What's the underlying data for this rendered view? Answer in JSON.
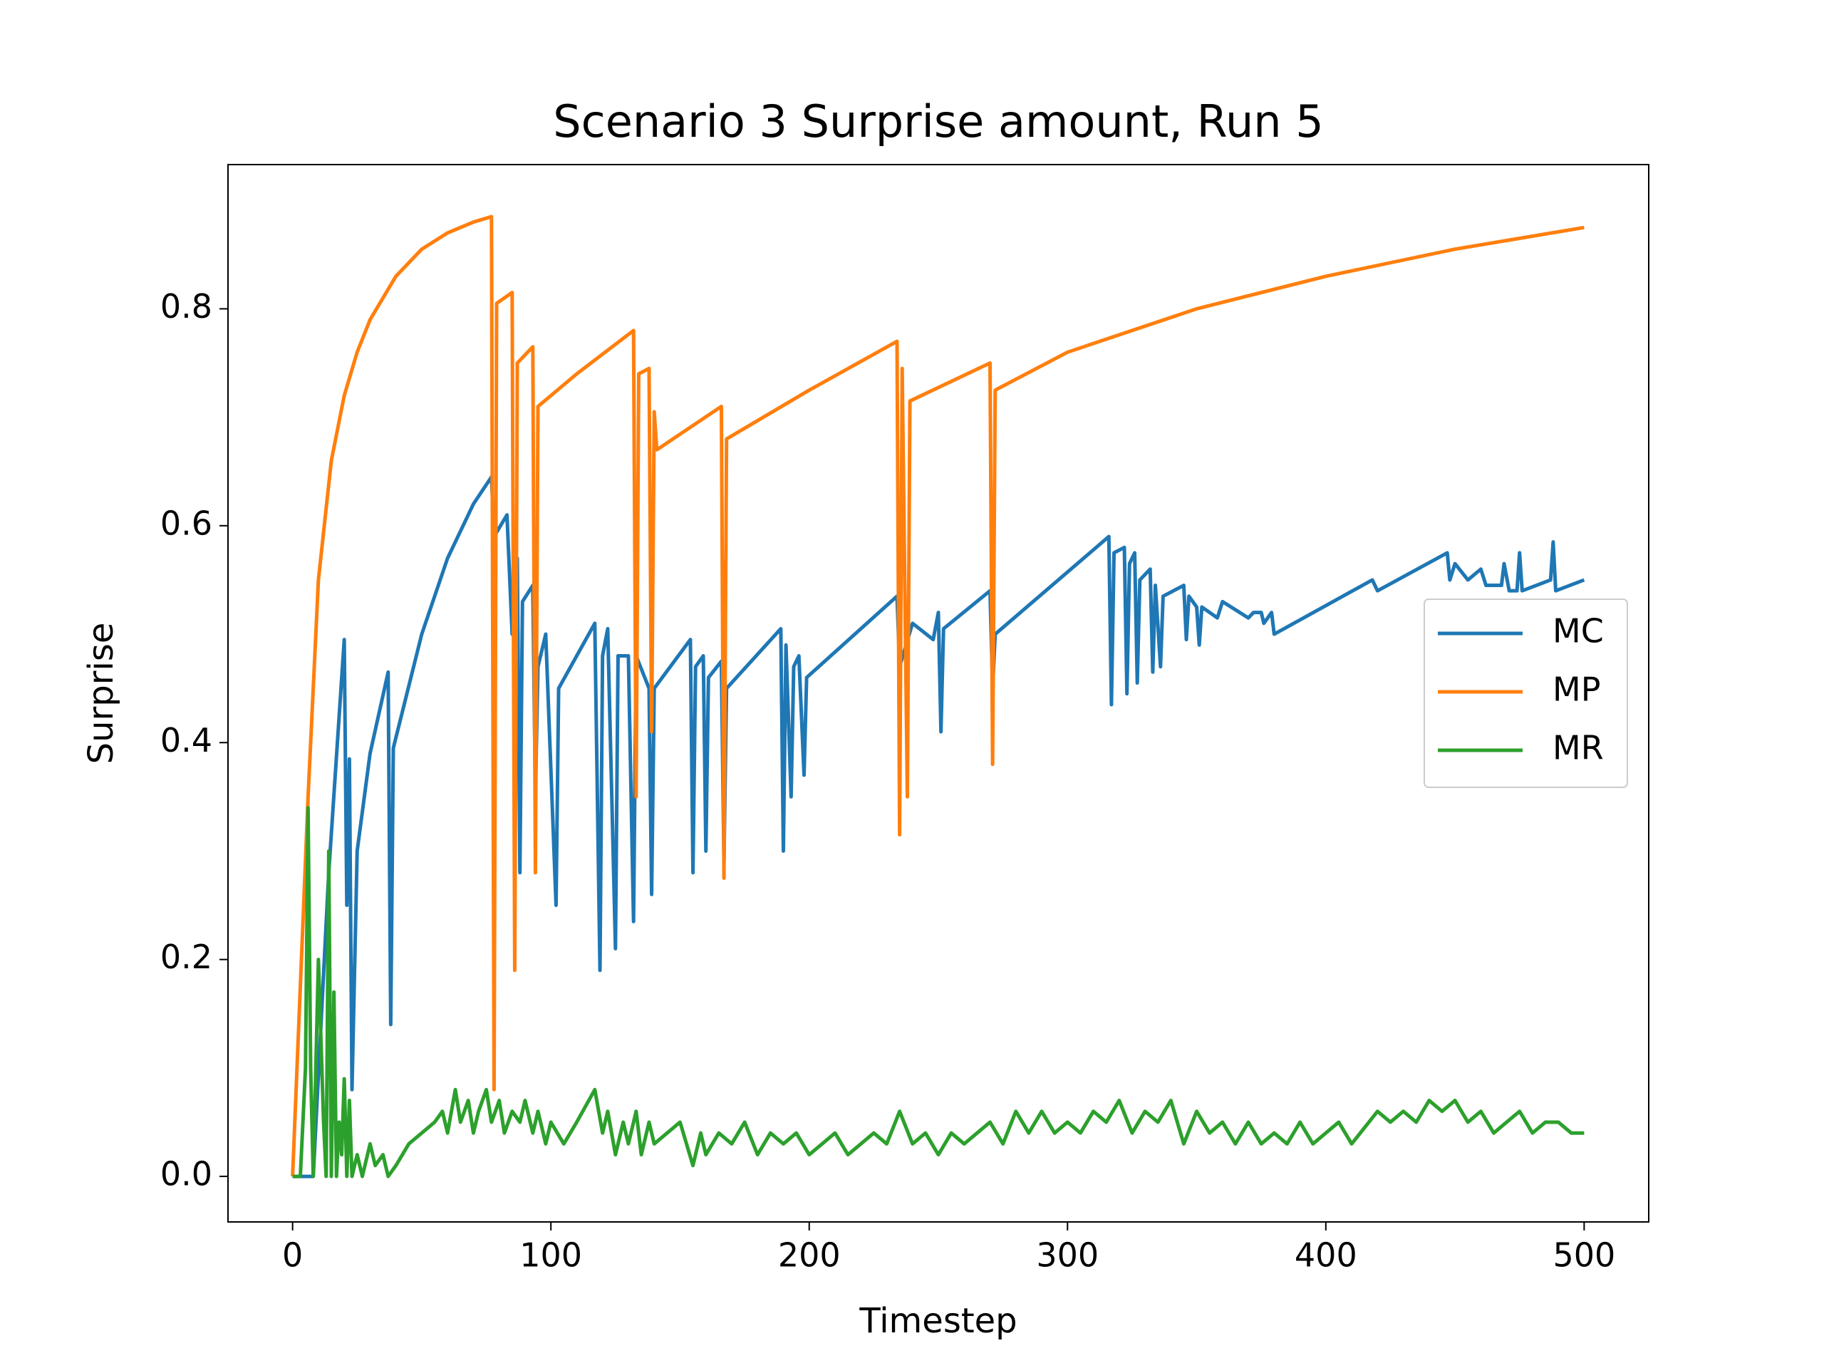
{
  "chart_data": {
    "type": "line",
    "title": "Scenario 3 Surprise amount, Run 5",
    "x_label": "Timestep",
    "y_label": "Surprise",
    "xlim": [
      -25,
      525
    ],
    "ylim": [
      -0.042,
      0.933
    ],
    "xticks": [
      0,
      100,
      200,
      300,
      400,
      500
    ],
    "yticks": [
      {
        "value": 0,
        "label": "0.0"
      },
      0.2,
      0.4,
      0.6,
      0.8
    ],
    "legend": "center right",
    "series": [
      {
        "name": "MC",
        "color": "#1f77b4",
        "x": [
          0,
          8,
          14,
          20,
          21,
          22,
          23,
          25,
          30,
          37,
          38,
          39,
          50,
          60,
          70,
          77,
          78,
          83,
          85,
          87,
          88,
          89,
          93,
          94,
          95,
          98,
          102,
          103,
          117,
          119,
          120,
          122,
          125,
          126,
          130,
          132,
          133,
          138,
          139,
          140,
          154,
          155,
          156,
          159,
          160,
          161,
          166,
          167,
          168,
          189,
          190,
          191,
          193,
          194,
          196,
          198,
          199,
          234,
          235,
          240,
          248,
          250,
          251,
          252,
          270,
          271,
          272,
          316,
          317,
          318,
          322,
          323,
          324,
          326,
          327,
          328,
          332,
          333,
          334,
          336,
          337,
          345,
          346,
          347,
          350,
          351,
          352,
          358,
          360,
          370,
          372,
          375,
          376,
          379,
          380,
          418,
          420,
          447,
          448,
          450,
          455,
          460,
          462,
          468,
          469,
          471,
          474,
          475,
          476,
          487,
          488,
          489,
          500
        ],
        "values": [
          0,
          0,
          0.28,
          0.495,
          0.25,
          0.385,
          0.08,
          0.3,
          0.39,
          0.465,
          0.14,
          0.395,
          0.5,
          0.57,
          0.62,
          0.645,
          0.59,
          0.61,
          0.5,
          0.57,
          0.28,
          0.53,
          0.545,
          0.35,
          0.47,
          0.5,
          0.25,
          0.45,
          0.51,
          0.19,
          0.48,
          0.505,
          0.21,
          0.48,
          0.48,
          0.235,
          0.48,
          0.45,
          0.26,
          0.45,
          0.495,
          0.28,
          0.47,
          0.48,
          0.3,
          0.46,
          0.475,
          0.29,
          0.45,
          0.505,
          0.3,
          0.49,
          0.35,
          0.47,
          0.48,
          0.37,
          0.46,
          0.535,
          0.47,
          0.51,
          0.495,
          0.52,
          0.41,
          0.505,
          0.54,
          0.45,
          0.5,
          0.59,
          0.435,
          0.575,
          0.58,
          0.445,
          0.565,
          0.575,
          0.455,
          0.55,
          0.56,
          0.465,
          0.545,
          0.47,
          0.535,
          0.545,
          0.495,
          0.535,
          0.525,
          0.49,
          0.525,
          0.515,
          0.53,
          0.515,
          0.52,
          0.52,
          0.51,
          0.52,
          0.5,
          0.55,
          0.54,
          0.575,
          0.55,
          0.565,
          0.55,
          0.56,
          0.545,
          0.545,
          0.565,
          0.54,
          0.54,
          0.575,
          0.54,
          0.55,
          0.585,
          0.54,
          0.55
        ]
      },
      {
        "name": "MP",
        "color": "#ff7f0e",
        "x": [
          0,
          6,
          10,
          15,
          20,
          25,
          30,
          40,
          50,
          60,
          70,
          77,
          78,
          79,
          85,
          86,
          87,
          93,
          94,
          95,
          110,
          132,
          133,
          134,
          138,
          139,
          140,
          141,
          166,
          167,
          168,
          200,
          234,
          235,
          236,
          238,
          239,
          270,
          271,
          272,
          300,
          350,
          400,
          450,
          500
        ],
        "values": [
          0,
          0.35,
          0.55,
          0.66,
          0.72,
          0.76,
          0.79,
          0.83,
          0.855,
          0.87,
          0.88,
          0.885,
          0.08,
          0.805,
          0.815,
          0.19,
          0.75,
          0.765,
          0.28,
          0.71,
          0.74,
          0.78,
          0.35,
          0.74,
          0.745,
          0.41,
          0.705,
          0.67,
          0.71,
          0.275,
          0.68,
          0.725,
          0.77,
          0.315,
          0.745,
          0.35,
          0.715,
          0.75,
          0.38,
          0.725,
          0.76,
          0.8,
          0.83,
          0.855,
          0.875
        ]
      },
      {
        "name": "MR",
        "color": "#2ca02c",
        "x": [
          0,
          3,
          5,
          6,
          7,
          8,
          10,
          12,
          13,
          14,
          15,
          16,
          17,
          18,
          19,
          20,
          21,
          22,
          23,
          24,
          25,
          27,
          30,
          32,
          35,
          37,
          40,
          45,
          50,
          55,
          58,
          60,
          63,
          65,
          68,
          70,
          72,
          75,
          77,
          80,
          82,
          85,
          88,
          90,
          93,
          95,
          98,
          100,
          105,
          110,
          117,
          120,
          122,
          125,
          128,
          130,
          133,
          135,
          138,
          140,
          145,
          150,
          155,
          158,
          160,
          165,
          170,
          175,
          180,
          185,
          190,
          195,
          200,
          205,
          210,
          215,
          220,
          225,
          230,
          235,
          240,
          245,
          250,
          255,
          260,
          265,
          270,
          275,
          280,
          285,
          290,
          295,
          300,
          305,
          310,
          315,
          320,
          325,
          330,
          335,
          340,
          345,
          350,
          355,
          360,
          365,
          370,
          375,
          380,
          385,
          390,
          395,
          400,
          405,
          410,
          420,
          425,
          430,
          435,
          440,
          445,
          450,
          455,
          460,
          465,
          470,
          475,
          480,
          485,
          490,
          495,
          500
        ],
        "values": [
          0,
          0,
          0.1,
          0.34,
          0.1,
          0,
          0.2,
          0.05,
          0,
          0.3,
          0,
          0.17,
          0,
          0.05,
          0.02,
          0.09,
          0,
          0.07,
          0,
          0.01,
          0.02,
          0,
          0.03,
          0.01,
          0.02,
          0,
          0.01,
          0.03,
          0.04,
          0.05,
          0.06,
          0.04,
          0.08,
          0.05,
          0.07,
          0.04,
          0.06,
          0.08,
          0.05,
          0.07,
          0.04,
          0.06,
          0.05,
          0.07,
          0.04,
          0.06,
          0.03,
          0.05,
          0.03,
          0.05,
          0.08,
          0.04,
          0.06,
          0.02,
          0.05,
          0.03,
          0.06,
          0.02,
          0.05,
          0.03,
          0.04,
          0.05,
          0.01,
          0.04,
          0.02,
          0.04,
          0.03,
          0.05,
          0.02,
          0.04,
          0.03,
          0.04,
          0.02,
          0.03,
          0.04,
          0.02,
          0.03,
          0.04,
          0.03,
          0.06,
          0.03,
          0.04,
          0.02,
          0.04,
          0.03,
          0.04,
          0.05,
          0.03,
          0.06,
          0.04,
          0.06,
          0.04,
          0.05,
          0.04,
          0.06,
          0.05,
          0.07,
          0.04,
          0.06,
          0.05,
          0.07,
          0.03,
          0.06,
          0.04,
          0.05,
          0.03,
          0.05,
          0.03,
          0.04,
          0.03,
          0.05,
          0.03,
          0.04,
          0.05,
          0.03,
          0.06,
          0.05,
          0.06,
          0.05,
          0.07,
          0.06,
          0.07,
          0.05,
          0.06,
          0.04,
          0.05,
          0.06,
          0.04,
          0.05,
          0.05,
          0.04,
          0.04
        ]
      }
    ]
  }
}
